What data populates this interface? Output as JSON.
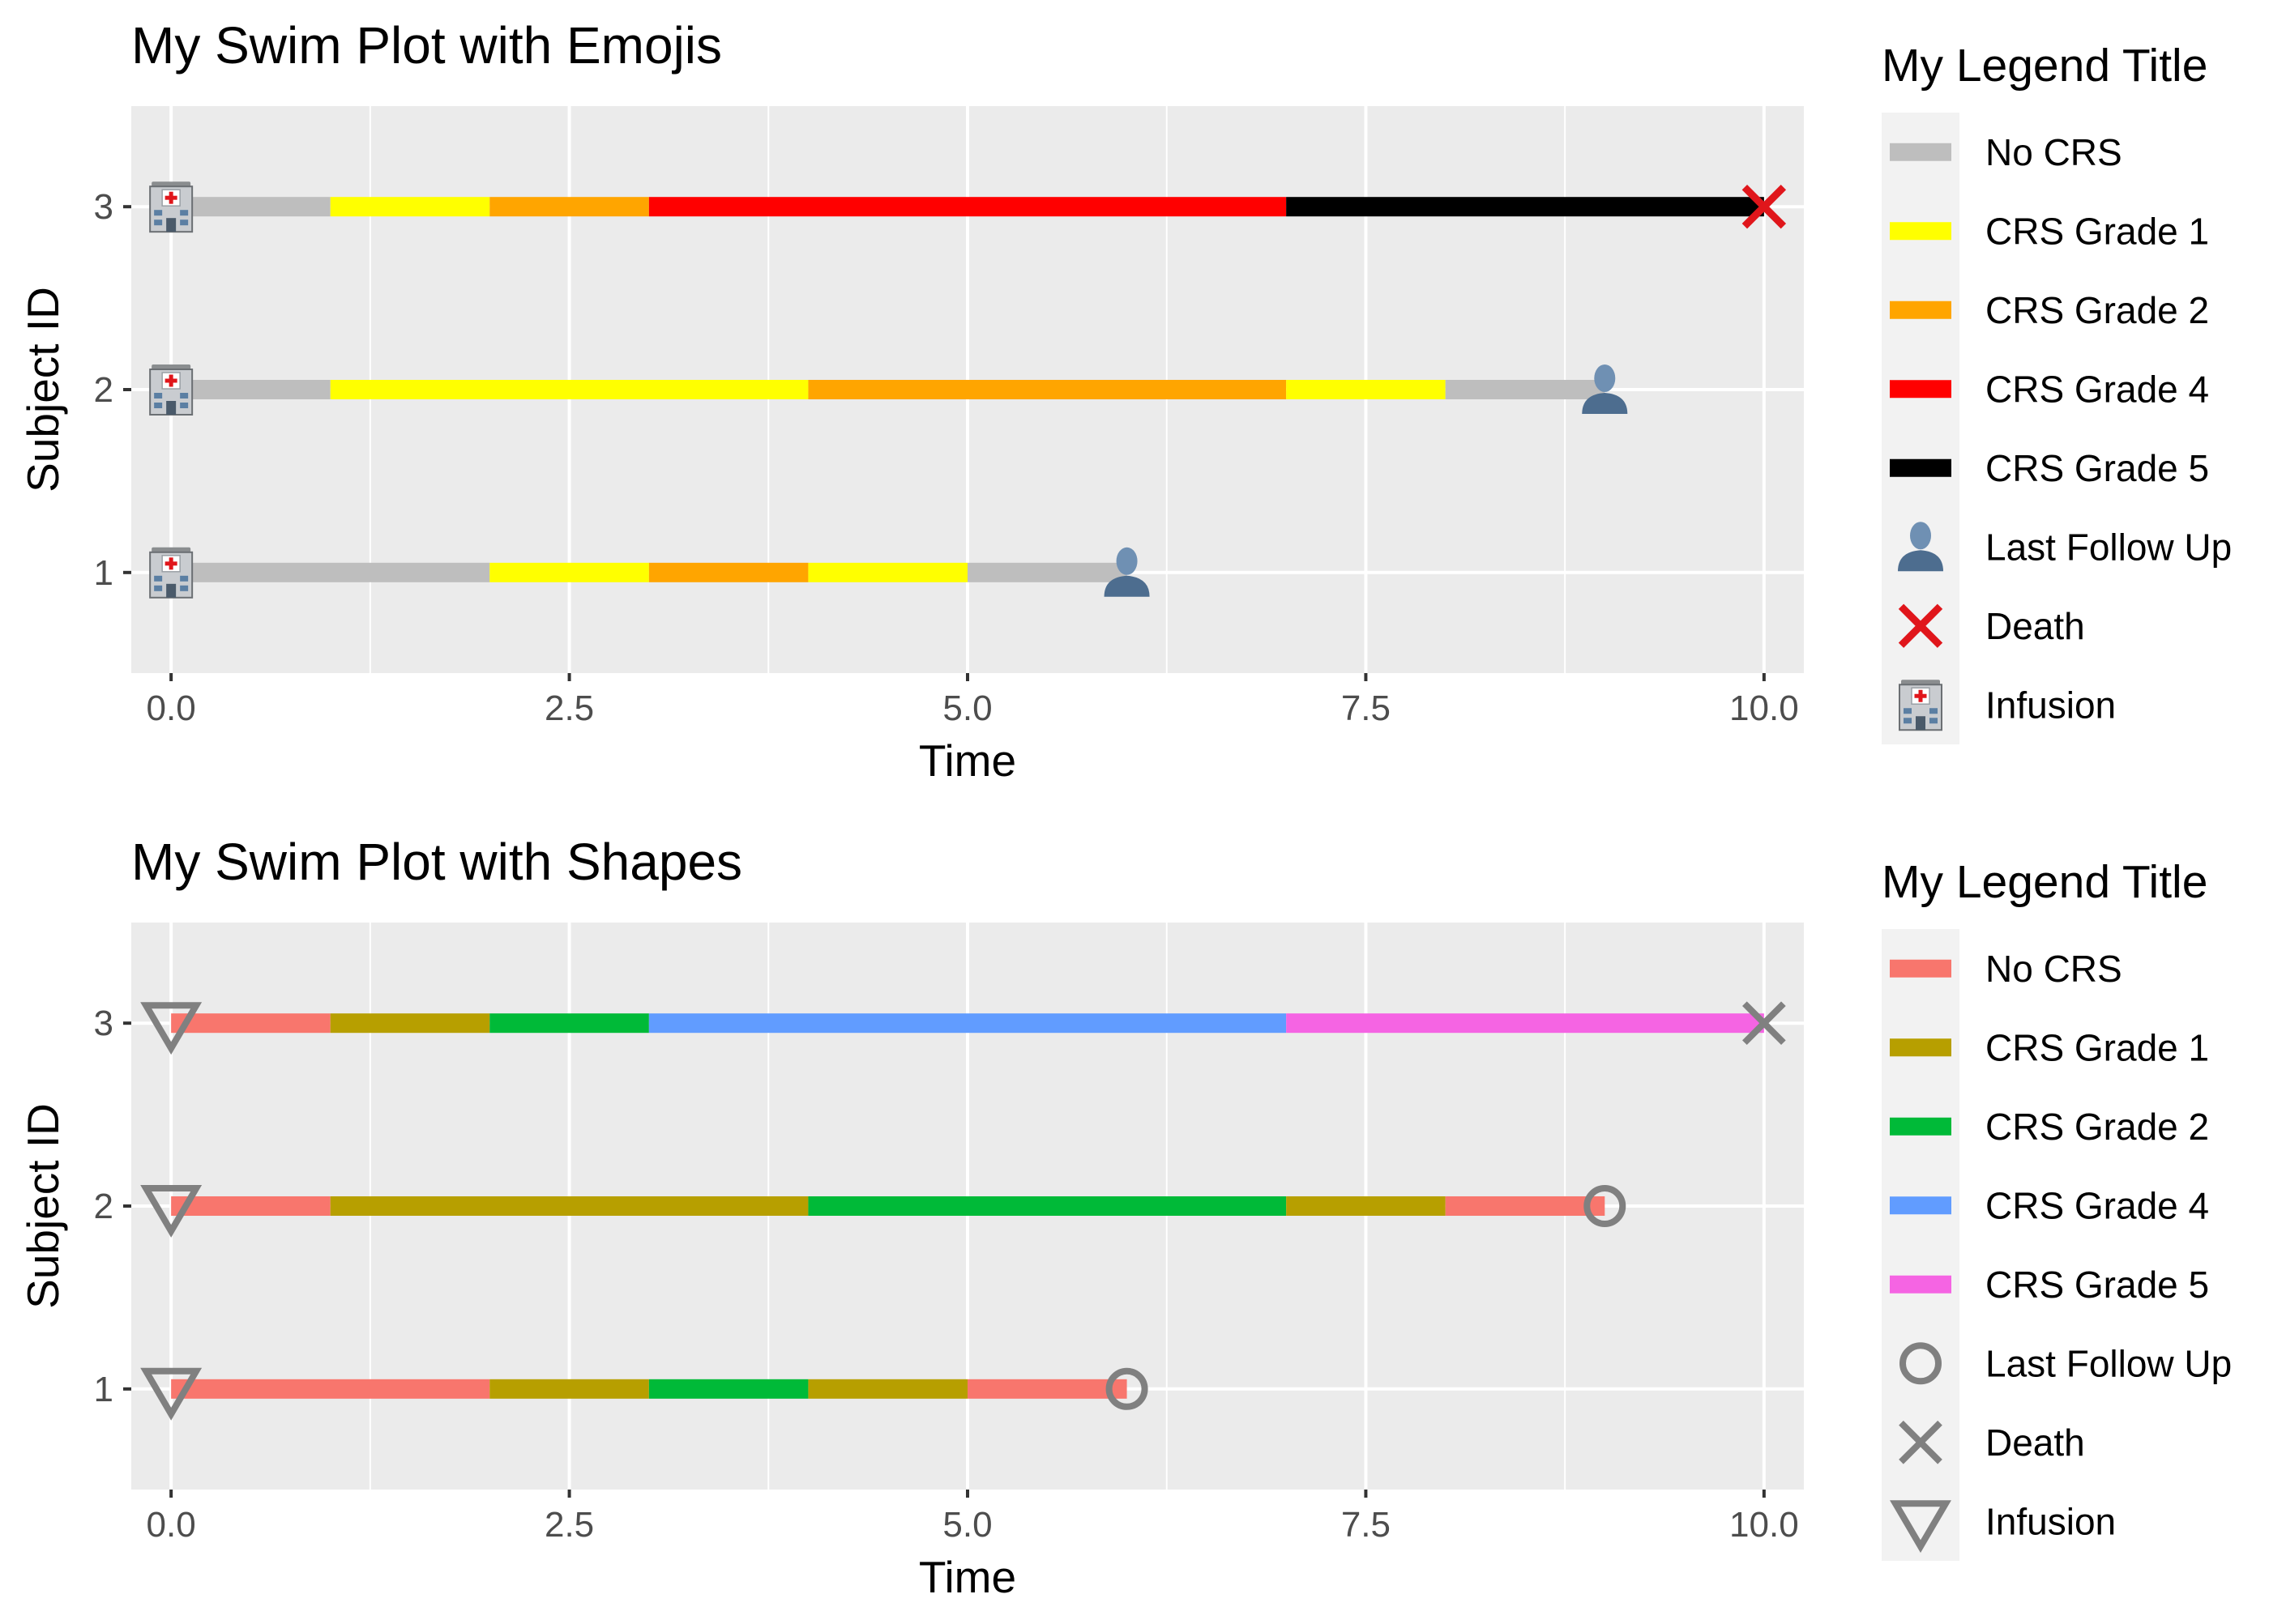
{
  "chart_data": [
    {
      "type": "swimmer",
      "title": "My Swim Plot with Emojis",
      "xlabel": "Time",
      "ylabel": "Subject ID",
      "xlim": [
        -0.25,
        10.25
      ],
      "ylim": [
        0.45,
        3.55
      ],
      "x_ticks": [
        0,
        2.5,
        5,
        7.5,
        10
      ],
      "x_tick_labels": [
        "0.0",
        "2.5",
        "5.0",
        "7.5",
        "10.0"
      ],
      "y_ticks": [
        1,
        2,
        3
      ],
      "y_tick_labels": [
        "1",
        "2",
        "3"
      ],
      "grid": true,
      "legend_position": "right",
      "legend_title": "My Legend Title",
      "segment_categories": [
        {
          "name": "No CRS",
          "color": "#bebebe"
        },
        {
          "name": "CRS Grade 1",
          "color": "#ffff00"
        },
        {
          "name": "CRS Grade 2",
          "color": "#ffa500"
        },
        {
          "name": "CRS Grade 4",
          "color": "#ff0000"
        },
        {
          "name": "CRS Grade 5",
          "color": "#000000"
        }
      ],
      "marker_categories": [
        {
          "name": "Last Follow Up",
          "icon": "person-silhouette-emoji"
        },
        {
          "name": "Death",
          "icon": "red-cross-mark-emoji",
          "color": "#e0161b"
        },
        {
          "name": "Infusion",
          "icon": "hospital-emoji"
        }
      ],
      "subjects": [
        {
          "id": 1,
          "segments": [
            {
              "start": 0,
              "end": 2,
              "category": "No CRS"
            },
            {
              "start": 2,
              "end": 3,
              "category": "CRS Grade 1"
            },
            {
              "start": 3,
              "end": 4,
              "category": "CRS Grade 2"
            },
            {
              "start": 4,
              "end": 5,
              "category": "CRS Grade 1"
            },
            {
              "start": 5,
              "end": 6,
              "category": "No CRS"
            }
          ]
        },
        {
          "id": 2,
          "segments": [
            {
              "start": 0,
              "end": 1,
              "category": "No CRS"
            },
            {
              "start": 1,
              "end": 4,
              "category": "CRS Grade 1"
            },
            {
              "start": 4,
              "end": 7,
              "category": "CRS Grade 2"
            },
            {
              "start": 7,
              "end": 8,
              "category": "CRS Grade 1"
            },
            {
              "start": 8,
              "end": 9,
              "category": "No CRS"
            }
          ]
        },
        {
          "id": 3,
          "segments": [
            {
              "start": 0,
              "end": 1,
              "category": "No CRS"
            },
            {
              "start": 1,
              "end": 2,
              "category": "CRS Grade 1"
            },
            {
              "start": 2,
              "end": 3,
              "category": "CRS Grade 2"
            },
            {
              "start": 3,
              "end": 7,
              "category": "CRS Grade 4"
            },
            {
              "start": 7,
              "end": 10,
              "category": "CRS Grade 5"
            }
          ]
        }
      ],
      "events": [
        {
          "subject": 1,
          "time": 0,
          "event": "Infusion"
        },
        {
          "subject": 2,
          "time": 0,
          "event": "Infusion"
        },
        {
          "subject": 3,
          "time": 0,
          "event": "Infusion"
        },
        {
          "subject": 1,
          "time": 6,
          "event": "Last Follow Up"
        },
        {
          "subject": 2,
          "time": 9,
          "event": "Last Follow Up"
        },
        {
          "subject": 3,
          "time": 10,
          "event": "Death"
        }
      ]
    },
    {
      "type": "swimmer",
      "title": "My Swim Plot with Shapes",
      "xlabel": "Time",
      "ylabel": "Subject ID",
      "xlim": [
        -0.25,
        10.25
      ],
      "ylim": [
        0.45,
        3.55
      ],
      "x_ticks": [
        0,
        2.5,
        5,
        7.5,
        10
      ],
      "x_tick_labels": [
        "0.0",
        "2.5",
        "5.0",
        "7.5",
        "10.0"
      ],
      "y_ticks": [
        1,
        2,
        3
      ],
      "y_tick_labels": [
        "1",
        "2",
        "3"
      ],
      "grid": true,
      "legend_position": "right",
      "legend_title": "My Legend Title",
      "segment_categories": [
        {
          "name": "No CRS",
          "color": "#f8766d"
        },
        {
          "name": "CRS Grade 1",
          "color": "#b79f00"
        },
        {
          "name": "CRS Grade 2",
          "color": "#00ba38"
        },
        {
          "name": "CRS Grade 4",
          "color": "#619cff"
        },
        {
          "name": "CRS Grade 5",
          "color": "#f564e3"
        }
      ],
      "marker_categories": [
        {
          "name": "Last Follow Up",
          "icon": "open-circle",
          "color": "#808080"
        },
        {
          "name": "Death",
          "icon": "x-mark",
          "color": "#808080"
        },
        {
          "name": "Infusion",
          "icon": "down-triangle",
          "color": "#808080"
        }
      ],
      "subjects": [
        {
          "id": 1,
          "segments": [
            {
              "start": 0,
              "end": 2,
              "category": "No CRS"
            },
            {
              "start": 2,
              "end": 3,
              "category": "CRS Grade 1"
            },
            {
              "start": 3,
              "end": 4,
              "category": "CRS Grade 2"
            },
            {
              "start": 4,
              "end": 5,
              "category": "CRS Grade 1"
            },
            {
              "start": 5,
              "end": 6,
              "category": "No CRS"
            }
          ]
        },
        {
          "id": 2,
          "segments": [
            {
              "start": 0,
              "end": 1,
              "category": "No CRS"
            },
            {
              "start": 1,
              "end": 4,
              "category": "CRS Grade 1"
            },
            {
              "start": 4,
              "end": 7,
              "category": "CRS Grade 2"
            },
            {
              "start": 7,
              "end": 8,
              "category": "CRS Grade 1"
            },
            {
              "start": 8,
              "end": 9,
              "category": "No CRS"
            }
          ]
        },
        {
          "id": 3,
          "segments": [
            {
              "start": 0,
              "end": 1,
              "category": "No CRS"
            },
            {
              "start": 1,
              "end": 2,
              "category": "CRS Grade 1"
            },
            {
              "start": 2,
              "end": 3,
              "category": "CRS Grade 2"
            },
            {
              "start": 3,
              "end": 7,
              "category": "CRS Grade 4"
            },
            {
              "start": 7,
              "end": 10,
              "category": "CRS Grade 5"
            }
          ]
        }
      ],
      "events": [
        {
          "subject": 1,
          "time": 0,
          "event": "Infusion"
        },
        {
          "subject": 2,
          "time": 0,
          "event": "Infusion"
        },
        {
          "subject": 3,
          "time": 0,
          "event": "Infusion"
        },
        {
          "subject": 1,
          "time": 6,
          "event": "Last Follow Up"
        },
        {
          "subject": 2,
          "time": 9,
          "event": "Last Follow Up"
        },
        {
          "subject": 3,
          "time": 10,
          "event": "Death"
        }
      ]
    }
  ],
  "colors": {
    "panel_background": "#ebebeb",
    "grid_line": "#ffffff",
    "tick_text": "#4d4d4d",
    "title_text": "#000000",
    "legend_key_background": "#f2f2f2"
  }
}
